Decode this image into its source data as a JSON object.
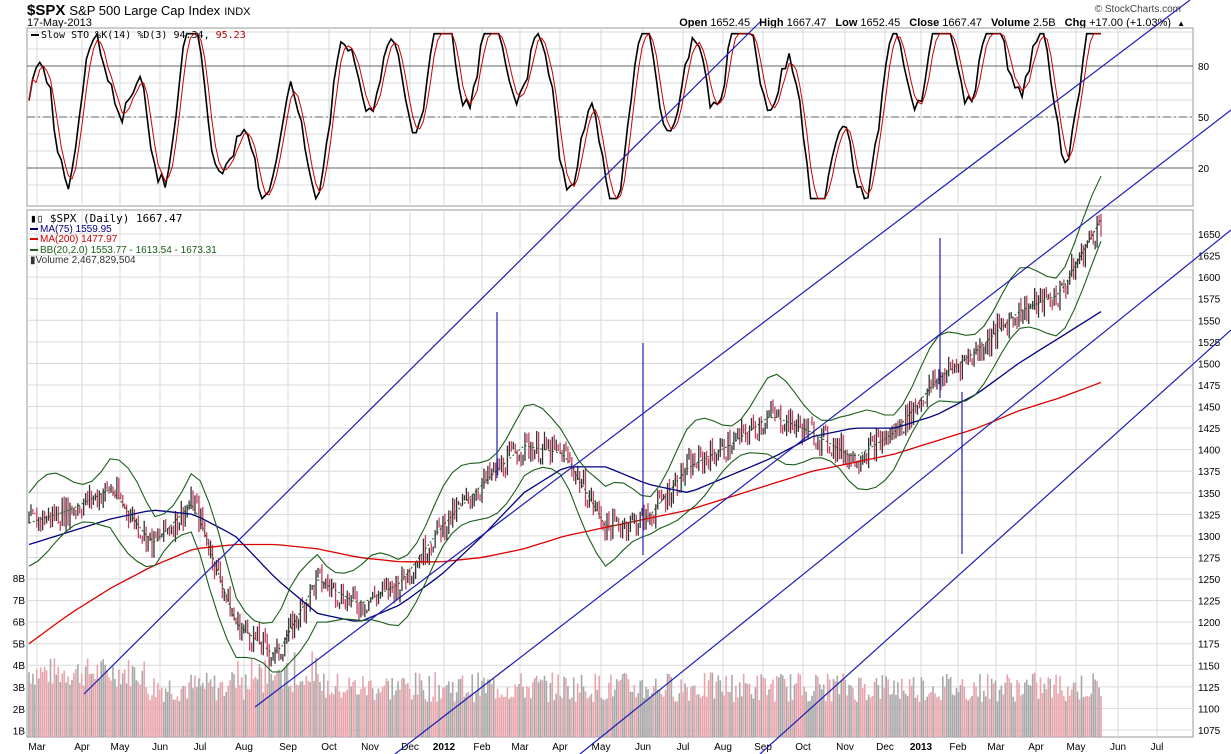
{
  "header": {
    "symbol": "$SPX",
    "name": "S&P 500 Large Cap Index",
    "exchange": "INDX",
    "date": "17-May-2013",
    "brand": "© StockCharts.com",
    "open_label": "Open",
    "open": "1652.45",
    "high_label": "High",
    "high": "1667.47",
    "low_label": "Low",
    "low": "1652.45",
    "close_label": "Close",
    "close": "1667.47",
    "volume_label": "Volume",
    "volume": "2.5B",
    "chg_label": "Chg",
    "chg": "+17.00 (+1.03%)",
    "chg_arrow": "▲"
  },
  "sto_panel": {
    "legend_prefix": "Slow STO %K(14) %D(3)",
    "k_value": "94.34,",
    "d_value": "95.23",
    "y_ticks": [
      "80",
      "50",
      "20"
    ]
  },
  "price_panel": {
    "legend": {
      "price": "$SPX (Daily) 1667.47",
      "ma75": "MA(75) 1559.95",
      "ma200": "MA(200) 1477.97",
      "bb": "BB(20,2.0) 1553.77 - 1613.54 - 1673.31",
      "volume": "Volume 2,467,829,504"
    },
    "y_ticks": [
      "1650",
      "1625",
      "1600",
      "1575",
      "1550",
      "1525",
      "1500",
      "1475",
      "1450",
      "1425",
      "1400",
      "1375",
      "1350",
      "1325",
      "1300",
      "1275",
      "1250",
      "1225",
      "1200",
      "1175",
      "1150",
      "1125",
      "1100",
      "1075"
    ],
    "volume_ticks": [
      "8B",
      "7B",
      "6B",
      "5B",
      "4B",
      "3B",
      "2B",
      "1B"
    ]
  },
  "x_axis": {
    "months": [
      "Mar",
      "Apr",
      "May",
      "Jun",
      "Jul",
      "Aug",
      "Sep",
      "Oct",
      "Nov",
      "Dec",
      "2012",
      "Feb",
      "Mar",
      "Apr",
      "May",
      "Jun",
      "Jul",
      "Aug",
      "Sep",
      "Oct",
      "Nov",
      "Dec",
      "2013",
      "Feb",
      "Mar",
      "Apr",
      "May",
      "Jun",
      "Jul"
    ]
  },
  "colors": {
    "stoK": "#000000",
    "stoD": "#cc0000",
    "ma75": "#000080",
    "ma200": "#dd0000",
    "bb": "#1a5e1a",
    "trend": "#1e1eb4",
    "up_bar": "#333333",
    "down_bar": "#c04060",
    "vol_up": "#a8a8a8",
    "vol_down": "#eaa4ac",
    "grid": "#d9d9d9"
  },
  "chart_data": {
    "type": "line",
    "title": "$SPX S&P 500 Large Cap Index INDX — Daily",
    "xlabel": "",
    "ylabel": "",
    "ylim": [
      1065,
      1690
    ],
    "grid": true,
    "categories": [
      "Mar 2011",
      "Apr 2011",
      "May 2011",
      "Jun 2011",
      "Jul 2011",
      "Aug 2011",
      "Sep 2011",
      "Oct 2011",
      "Nov 2011",
      "Dec 2011",
      "Jan 2012",
      "Feb 2012",
      "Mar 2012",
      "Apr 2012",
      "May 2012",
      "Jun 2012",
      "Jul 2012",
      "Aug 2012",
      "Sep 2012",
      "Oct 2012",
      "Nov 2012",
      "Dec 2012",
      "Jan 2013",
      "Feb 2013",
      "Mar 2013",
      "Apr 2013",
      "May 2013"
    ],
    "series": [
      {
        "name": "$SPX close (approx)",
        "values": [
          1315,
          1330,
          1355,
          1290,
          1340,
          1200,
          1160,
          1250,
          1220,
          1245,
          1310,
          1360,
          1405,
          1395,
          1310,
          1320,
          1380,
          1405,
          1440,
          1420,
          1390,
          1420,
          1480,
          1515,
          1560,
          1580,
          1667
        ]
      },
      {
        "name": "MA(75)",
        "values": [
          1290,
          1305,
          1320,
          1330,
          1325,
          1300,
          1250,
          1210,
          1200,
          1220,
          1255,
          1300,
          1350,
          1380,
          1380,
          1360,
          1350,
          1370,
          1390,
          1415,
          1425,
          1425,
          1440,
          1465,
          1500,
          1530,
          1560
        ]
      },
      {
        "name": "MA(200)",
        "values": [
          1175,
          1210,
          1240,
          1265,
          1285,
          1290,
          1290,
          1285,
          1275,
          1270,
          1270,
          1275,
          1285,
          1300,
          1310,
          1320,
          1330,
          1345,
          1360,
          1375,
          1385,
          1395,
          1410,
          1425,
          1445,
          1460,
          1478
        ]
      },
      {
        "name": "Slow STO %K",
        "values": [
          60,
          40,
          90,
          20,
          95,
          10,
          40,
          30,
          85,
          60,
          90,
          85,
          90,
          40,
          15,
          80,
          60,
          95,
          85,
          20,
          15,
          75,
          95,
          85,
          95,
          50,
          94.34
        ]
      },
      {
        "name": "Slow STO %D",
        "values": [
          58,
          42,
          88,
          22,
          92,
          12,
          38,
          32,
          82,
          62,
          88,
          84,
          88,
          45,
          18,
          75,
          62,
          92,
          86,
          25,
          17,
          70,
          94,
          86,
          94,
          55,
          95.23
        ]
      }
    ],
    "annotations": [
      "Slow STO overbought 80 / oversold 20, midline 50",
      "Parallel blue trend-channel lines",
      "Volume bars 1B–8B scale"
    ]
  }
}
